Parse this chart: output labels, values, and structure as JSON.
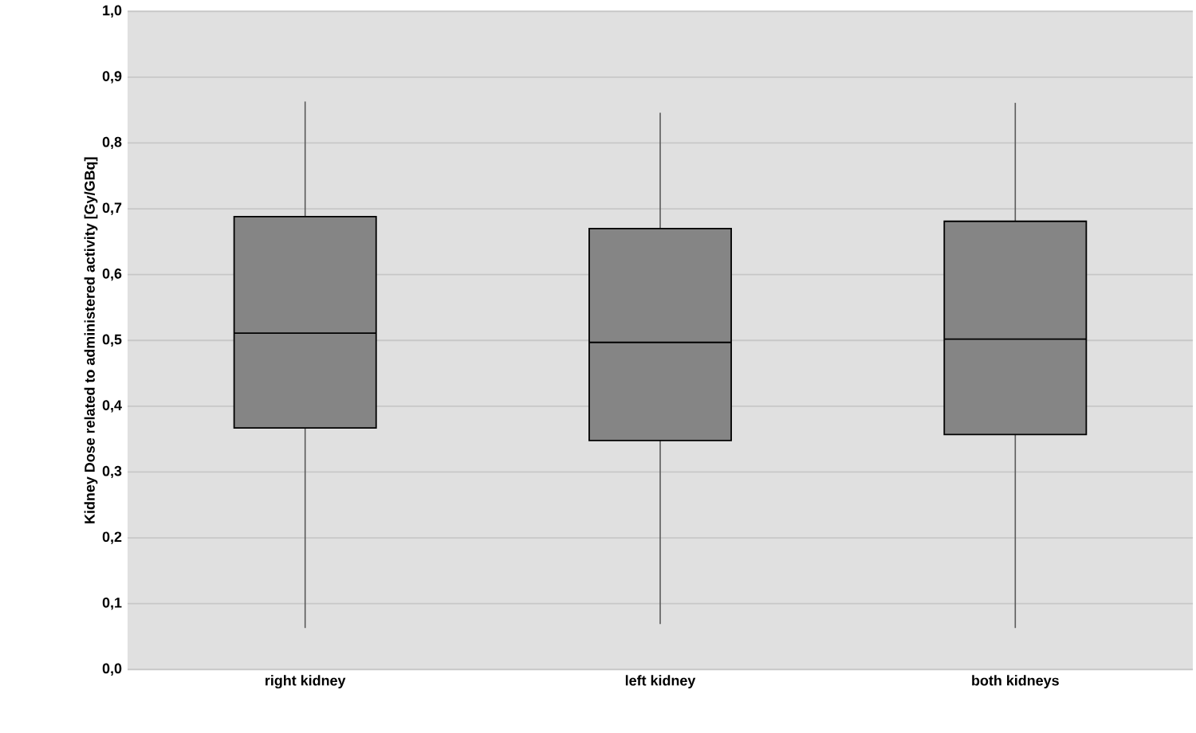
{
  "chart_data": {
    "type": "box",
    "ylabel": "Kidney Dose related to administered activity [Gy/GBq]",
    "categories": [
      "right kidney",
      "left kidney",
      "both kidneys"
    ],
    "boxes": [
      {
        "low": 0.063,
        "q1": 0.367,
        "median": 0.511,
        "q3": 0.688,
        "high": 0.863
      },
      {
        "low": 0.069,
        "q1": 0.348,
        "median": 0.497,
        "q3": 0.67,
        "high": 0.846
      },
      {
        "low": 0.063,
        "q1": 0.357,
        "median": 0.502,
        "q3": 0.681,
        "high": 0.861
      }
    ],
    "color": "#858585",
    "ylim": [
      0,
      1
    ],
    "yticks": [
      {
        "value": 0,
        "label": "0,0"
      },
      {
        "value": 0.1,
        "label": "0,1"
      },
      {
        "value": 0.2,
        "label": "0,2"
      },
      {
        "value": 0.3,
        "label": "0,3"
      },
      {
        "value": 0.4,
        "label": "0,4"
      },
      {
        "value": 0.5,
        "label": "0,5"
      },
      {
        "value": 0.6,
        "label": "0,6"
      },
      {
        "value": 0.7,
        "label": "0,7"
      },
      {
        "value": 0.8,
        "label": "0,8"
      },
      {
        "value": 0.9,
        "label": "0,9"
      },
      {
        "value": 1.0,
        "label": "1,0"
      }
    ],
    "grid": "y"
  }
}
